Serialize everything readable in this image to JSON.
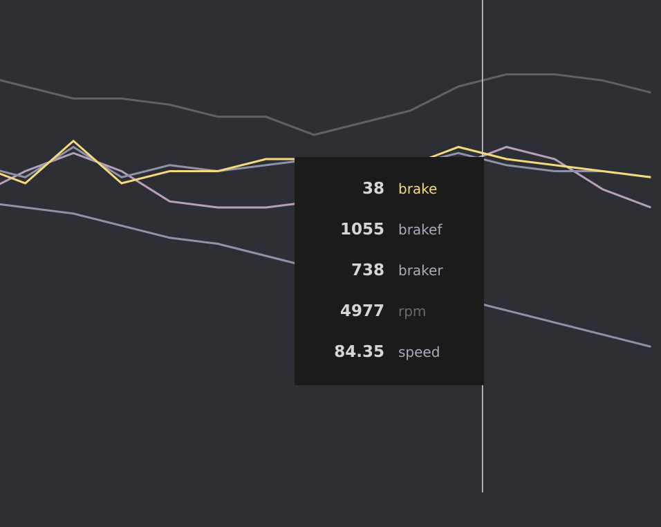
{
  "chart_data": {
    "type": "line",
    "x": [
      0,
      1,
      2,
      3,
      4,
      5,
      6,
      7,
      8,
      9,
      10,
      11,
      12,
      13,
      14
    ],
    "hover_index": 10.5,
    "series": [
      {
        "name": "brake",
        "color": "#f5d97a",
        "values": [
          55,
          52,
          59,
          52,
          54,
          54,
          56,
          56,
          54,
          55,
          58,
          56,
          55,
          54,
          53
        ]
      },
      {
        "name": "brakef",
        "color": "#8e93a8",
        "values": [
          55,
          53,
          58,
          53,
          55,
          54,
          55,
          56,
          54,
          55,
          57,
          55,
          54,
          54,
          53
        ]
      },
      {
        "name": "braker",
        "color": "#b6a0ba",
        "values": [
          50,
          54,
          57,
          54,
          49,
          48,
          48,
          49,
          50,
          52,
          55,
          58,
          56,
          51,
          48
        ]
      },
      {
        "name": "rpm",
        "color": "#616161",
        "values": [
          70,
          68,
          66,
          66,
          65,
          63,
          63,
          60,
          62,
          64,
          68,
          70,
          70,
          69,
          67
        ]
      },
      {
        "name": "speed",
        "color": "#8e93a8",
        "values": [
          49,
          48,
          47,
          45,
          43,
          42,
          40,
          38,
          37,
          35,
          33,
          31,
          29,
          27,
          25
        ]
      }
    ]
  },
  "tooltip": {
    "rows": [
      {
        "value": "38",
        "name": "brake",
        "color": "#f5d97a"
      },
      {
        "value": "1055",
        "name": "brakef",
        "color": "#a8abba"
      },
      {
        "value": "738",
        "name": "braker",
        "color": "#a8abba"
      },
      {
        "value": "4977",
        "name": "rpm",
        "color": "#6a6a6a"
      },
      {
        "value": "84.35",
        "name": "speed",
        "color": "#a8abba"
      }
    ]
  }
}
